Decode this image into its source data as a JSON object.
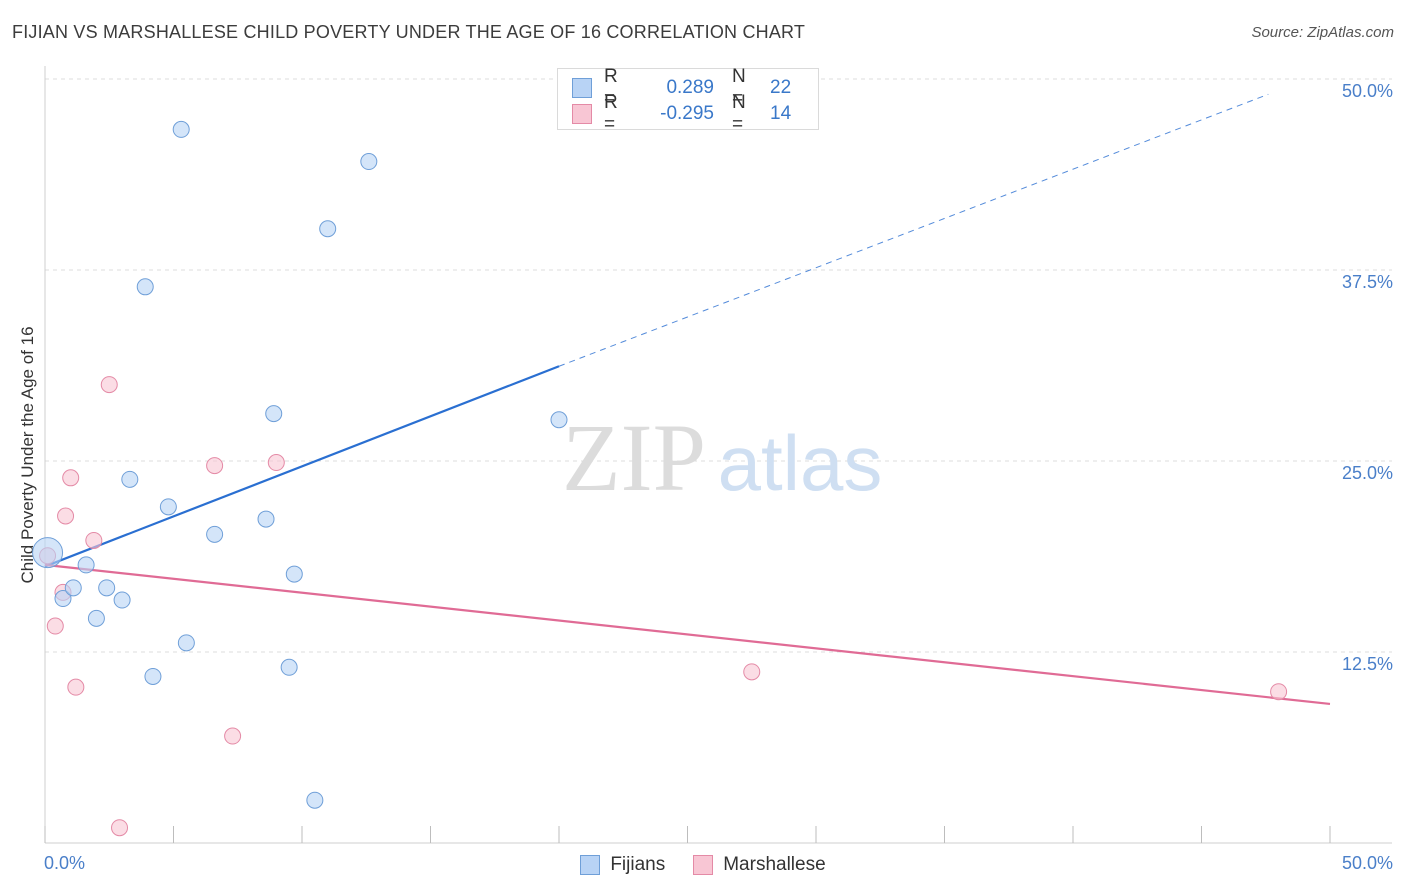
{
  "title": "FIJIAN VS MARSHALLESE CHILD POVERTY UNDER THE AGE OF 16 CORRELATION CHART",
  "source": "Source: ZipAtlas.com",
  "watermark": {
    "zip": "ZIP",
    "atlas": "atlas"
  },
  "legend": {
    "rows": [
      {
        "r_label": "R =",
        "r_value": "0.289",
        "n_label": "N =",
        "n_value": "22"
      },
      {
        "r_label": "R =",
        "r_value": "-0.295",
        "n_label": "N =",
        "n_value": "14"
      }
    ]
  },
  "colors": {
    "fijians_fill": "#b8d3f5",
    "fijians_stroke": "#6f9fd8",
    "fijians_line": "#2a6fd1",
    "marshallese_fill": "#f8c6d4",
    "marshallese_stroke": "#e48aa6",
    "marshallese_line": "#e06b95",
    "axis_text": "#4a7fc9",
    "grid": "#dddddd"
  },
  "chart_data": {
    "type": "scatter",
    "title": "FIJIAN VS MARSHALLESE CHILD POVERTY UNDER THE AGE OF 16 CORRELATION CHART",
    "xlabel": "",
    "ylabel": "Child Poverty Under the Age of 16",
    "xlim": [
      0,
      50
    ],
    "ylim": [
      0,
      50
    ],
    "x_tick_labels": [
      {
        "value": 0,
        "label": "0.0%"
      },
      {
        "value": 50,
        "label": "50.0%"
      }
    ],
    "y_tick_labels": [
      {
        "value": 12.5,
        "label": "12.5%"
      },
      {
        "value": 25,
        "label": "25.0%"
      },
      {
        "value": 37.5,
        "label": "37.5%"
      },
      {
        "value": 50,
        "label": "50.0%"
      }
    ],
    "series": [
      {
        "name": "Fijians",
        "r": 0.289,
        "n": 22,
        "points": [
          {
            "x": 0.1,
            "y": 19.0,
            "size": "large"
          },
          {
            "x": 0.7,
            "y": 16.0
          },
          {
            "x": 1.1,
            "y": 16.7
          },
          {
            "x": 1.6,
            "y": 18.2
          },
          {
            "x": 2.0,
            "y": 14.7
          },
          {
            "x": 2.4,
            "y": 16.7
          },
          {
            "x": 3.0,
            "y": 15.9
          },
          {
            "x": 3.3,
            "y": 23.8
          },
          {
            "x": 3.9,
            "y": 36.4
          },
          {
            "x": 4.2,
            "y": 10.9
          },
          {
            "x": 4.8,
            "y": 22.0
          },
          {
            "x": 5.3,
            "y": 46.7
          },
          {
            "x": 5.5,
            "y": 13.1
          },
          {
            "x": 6.6,
            "y": 20.2
          },
          {
            "x": 8.6,
            "y": 21.2
          },
          {
            "x": 8.9,
            "y": 28.1
          },
          {
            "x": 9.5,
            "y": 11.5
          },
          {
            "x": 9.7,
            "y": 17.6
          },
          {
            "x": 10.5,
            "y": 2.8
          },
          {
            "x": 11.0,
            "y": 40.2
          },
          {
            "x": 12.6,
            "y": 44.6
          },
          {
            "x": 20.0,
            "y": 27.7
          }
        ],
        "trend": {
          "x_start": 0,
          "y_start": 18.1,
          "x_solid_end": 20.0,
          "y_solid_end": 31.2,
          "x_end": 47.6,
          "y_end": 49.0,
          "dashed_after": 20.0
        }
      },
      {
        "name": "Marshallese",
        "r": -0.295,
        "n": 14,
        "points": [
          {
            "x": 0.1,
            "y": 18.8
          },
          {
            "x": 0.4,
            "y": 14.2
          },
          {
            "x": 0.7,
            "y": 16.4
          },
          {
            "x": 0.8,
            "y": 21.4
          },
          {
            "x": 1.0,
            "y": 23.9
          },
          {
            "x": 1.2,
            "y": 10.2
          },
          {
            "x": 1.9,
            "y": 19.8
          },
          {
            "x": 2.5,
            "y": 30.0
          },
          {
            "x": 2.9,
            "y": 1.0
          },
          {
            "x": 6.6,
            "y": 24.7
          },
          {
            "x": 7.3,
            "y": 7.0
          },
          {
            "x": 9.0,
            "y": 24.9
          },
          {
            "x": 27.5,
            "y": 11.2
          },
          {
            "x": 48.0,
            "y": 9.9
          }
        ],
        "trend": {
          "x_start": 0,
          "y_start": 18.2,
          "x_end": 50,
          "y_end": 9.1
        }
      }
    ]
  }
}
